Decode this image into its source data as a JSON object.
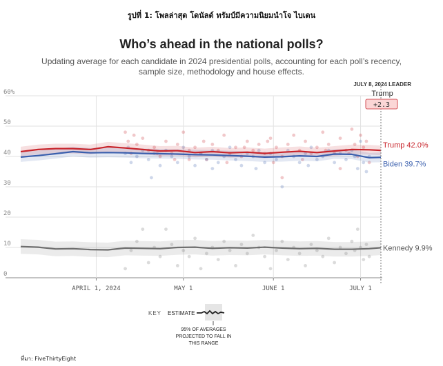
{
  "caption": "รูปที่ 1: โพลล่าสุด โดนัลด์ ทรัมป์มีความนิยมนำโจ ไบเดน",
  "source": "ที่มา: FiveThirtyEight",
  "chart_data": {
    "type": "line",
    "title": "Who’s ahead in the national polls?",
    "subtitle_lines": [
      "Updating average for each candidate in 2024 presidential polls, accounting for each poll’s recency,",
      "sample size, methodology and house effects."
    ],
    "y_ticks": [
      "60%",
      "50",
      "40",
      "30",
      "20",
      "10",
      "0"
    ],
    "y_tick_values": [
      60,
      50,
      40,
      30,
      20,
      10,
      0
    ],
    "ylim": [
      0,
      60
    ],
    "x_ticks": [
      "APRIL 1, 2024",
      "MAY 1",
      "JUNE 1",
      "JULY 1"
    ],
    "x_tick_days": [
      26,
      56,
      87,
      117
    ],
    "xlim_days": [
      0,
      124
    ],
    "grid": true,
    "leader_header": "JULY 8, 2024 LEADER",
    "leader_name": "Trump",
    "leader_margin": "+2.3",
    "series": [
      {
        "name": "Trump",
        "label": "Trump 42.0%",
        "color": "#c8242b",
        "band": 1.6,
        "x": [
          0,
          6,
          12,
          18,
          24,
          30,
          36,
          42,
          48,
          54,
          60,
          66,
          72,
          78,
          84,
          90,
          96,
          102,
          108,
          114,
          120,
          124
        ],
        "y": [
          41.6,
          42.3,
          42.6,
          42.6,
          42.3,
          43.2,
          42.8,
          42.3,
          41.8,
          41.9,
          41.3,
          41.6,
          41.2,
          41.4,
          41.0,
          41.4,
          41.7,
          41.3,
          41.8,
          42.3,
          42.2,
          42.0
        ]
      },
      {
        "name": "Biden",
        "label": "Biden 39.7%",
        "color": "#3a5fad",
        "band": 1.6,
        "x": [
          0,
          6,
          12,
          18,
          24,
          30,
          36,
          42,
          48,
          54,
          60,
          66,
          72,
          78,
          84,
          90,
          96,
          102,
          108,
          114,
          120,
          124
        ],
        "y": [
          39.8,
          40.3,
          40.9,
          41.6,
          41.2,
          41.3,
          41.2,
          41.0,
          40.9,
          40.8,
          40.6,
          40.5,
          40.3,
          40.1,
          39.8,
          39.9,
          40.2,
          40.0,
          40.8,
          40.7,
          39.6,
          39.7
        ]
      },
      {
        "name": "Kennedy",
        "label": "Kennedy 9.9%",
        "color": "#6e6e6e",
        "band": 2.4,
        "x": [
          0,
          6,
          12,
          18,
          24,
          30,
          36,
          42,
          48,
          54,
          60,
          66,
          72,
          78,
          84,
          90,
          96,
          102,
          108,
          114,
          120,
          124
        ],
        "y": [
          10.3,
          10.1,
          9.5,
          9.6,
          9.3,
          9.2,
          9.8,
          9.7,
          9.6,
          10.0,
          10.1,
          9.7,
          9.9,
          9.8,
          10.1,
          9.8,
          9.6,
          9.7,
          9.4,
          9.4,
          9.6,
          9.9
        ]
      }
    ],
    "poll_dots": {
      "Trump": [
        [
          36,
          48
        ],
        [
          37,
          45
        ],
        [
          38,
          41
        ],
        [
          40,
          44
        ],
        [
          42,
          46
        ],
        [
          44,
          42
        ],
        [
          46,
          43
        ],
        [
          48,
          40
        ],
        [
          50,
          45
        ],
        [
          52,
          41
        ],
        [
          54,
          44
        ],
        [
          56,
          48
        ],
        [
          58,
          42
        ],
        [
          60,
          43
        ],
        [
          62,
          41
        ],
        [
          64,
          39
        ],
        [
          66,
          44
        ],
        [
          68,
          42
        ],
        [
          70,
          47
        ],
        [
          72,
          41
        ],
        [
          74,
          43
        ],
        [
          76,
          40
        ],
        [
          78,
          45
        ],
        [
          80,
          42
        ],
        [
          82,
          44
        ],
        [
          84,
          41
        ],
        [
          86,
          46
        ],
        [
          88,
          43
        ],
        [
          90,
          40
        ],
        [
          92,
          44
        ],
        [
          94,
          47
        ],
        [
          96,
          42
        ],
        [
          98,
          45
        ],
        [
          100,
          41
        ],
        [
          102,
          43
        ],
        [
          104,
          48
        ],
        [
          106,
          44
        ],
        [
          108,
          41
        ],
        [
          110,
          46
        ],
        [
          112,
          42
        ],
        [
          114,
          49
        ],
        [
          115,
          44
        ],
        [
          116,
          40
        ],
        [
          117,
          47
        ],
        [
          118,
          43
        ],
        [
          119,
          45
        ],
        [
          120,
          38
        ],
        [
          110,
          36
        ],
        [
          90,
          33
        ],
        [
          71,
          38
        ],
        [
          53,
          39
        ],
        [
          39,
          47
        ],
        [
          113,
          41
        ],
        [
          105,
          42
        ],
        [
          85,
          45
        ],
        [
          63,
          45
        ],
        [
          47,
          41
        ],
        [
          58,
          39
        ],
        [
          77,
          43
        ],
        [
          97,
          39
        ],
        [
          87,
          38
        ]
      ],
      "Biden": [
        [
          36,
          41
        ],
        [
          37,
          43
        ],
        [
          38,
          38
        ],
        [
          40,
          40
        ],
        [
          42,
          42
        ],
        [
          44,
          39
        ],
        [
          46,
          41
        ],
        [
          48,
          37
        ],
        [
          50,
          42
        ],
        [
          52,
          40
        ],
        [
          54,
          38
        ],
        [
          56,
          43
        ],
        [
          58,
          40
        ],
        [
          60,
          37
        ],
        [
          62,
          41
        ],
        [
          64,
          39
        ],
        [
          66,
          42
        ],
        [
          68,
          38
        ],
        [
          70,
          40
        ],
        [
          72,
          43
        ],
        [
          74,
          39
        ],
        [
          76,
          37
        ],
        [
          78,
          41
        ],
        [
          80,
          40
        ],
        [
          82,
          42
        ],
        [
          84,
          38
        ],
        [
          86,
          41
        ],
        [
          88,
          39
        ],
        [
          90,
          30
        ],
        [
          92,
          42
        ],
        [
          94,
          40
        ],
        [
          96,
          38
        ],
        [
          98,
          41
        ],
        [
          100,
          43
        ],
        [
          102,
          39
        ],
        [
          104,
          40
        ],
        [
          106,
          42
        ],
        [
          108,
          38
        ],
        [
          110,
          41
        ],
        [
          112,
          39
        ],
        [
          114,
          42
        ],
        [
          115,
          40
        ],
        [
          116,
          36
        ],
        [
          117,
          45
        ],
        [
          118,
          38
        ],
        [
          119,
          35
        ],
        [
          120,
          40
        ],
        [
          45,
          33
        ],
        [
          66,
          36
        ],
        [
          81,
          36
        ],
        [
          99,
          37
        ]
      ],
      "Kennedy": [
        [
          36,
          3
        ],
        [
          38,
          9
        ],
        [
          40,
          12
        ],
        [
          42,
          16
        ],
        [
          44,
          5
        ],
        [
          46,
          10
        ],
        [
          48,
          7
        ],
        [
          50,
          16
        ],
        [
          52,
          11
        ],
        [
          54,
          4
        ],
        [
          56,
          9
        ],
        [
          58,
          7
        ],
        [
          60,
          13
        ],
        [
          62,
          3
        ],
        [
          64,
          8
        ],
        [
          66,
          10
        ],
        [
          68,
          6
        ],
        [
          70,
          12
        ],
        [
          72,
          9
        ],
        [
          74,
          4
        ],
        [
          76,
          11
        ],
        [
          78,
          8
        ],
        [
          80,
          14
        ],
        [
          82,
          10
        ],
        [
          84,
          7
        ],
        [
          86,
          3
        ],
        [
          88,
          9
        ],
        [
          90,
          12
        ],
        [
          92,
          6
        ],
        [
          94,
          10
        ],
        [
          96,
          8
        ],
        [
          98,
          4
        ],
        [
          100,
          11
        ],
        [
          102,
          9
        ],
        [
          104,
          7
        ],
        [
          106,
          13
        ],
        [
          108,
          5
        ],
        [
          110,
          10
        ],
        [
          112,
          8
        ],
        [
          114,
          12
        ],
        [
          115,
          9
        ],
        [
          116,
          16
        ],
        [
          117,
          10
        ],
        [
          118,
          6
        ],
        [
          119,
          11
        ],
        [
          120,
          7
        ]
      ]
    },
    "key": {
      "label": "KEY",
      "estimate_label": "ESTIMATE",
      "band_note_lines": [
        "95% OF AVERAGES",
        "PROJECTED TO FALL IN",
        "THIS RANGE"
      ]
    }
  }
}
